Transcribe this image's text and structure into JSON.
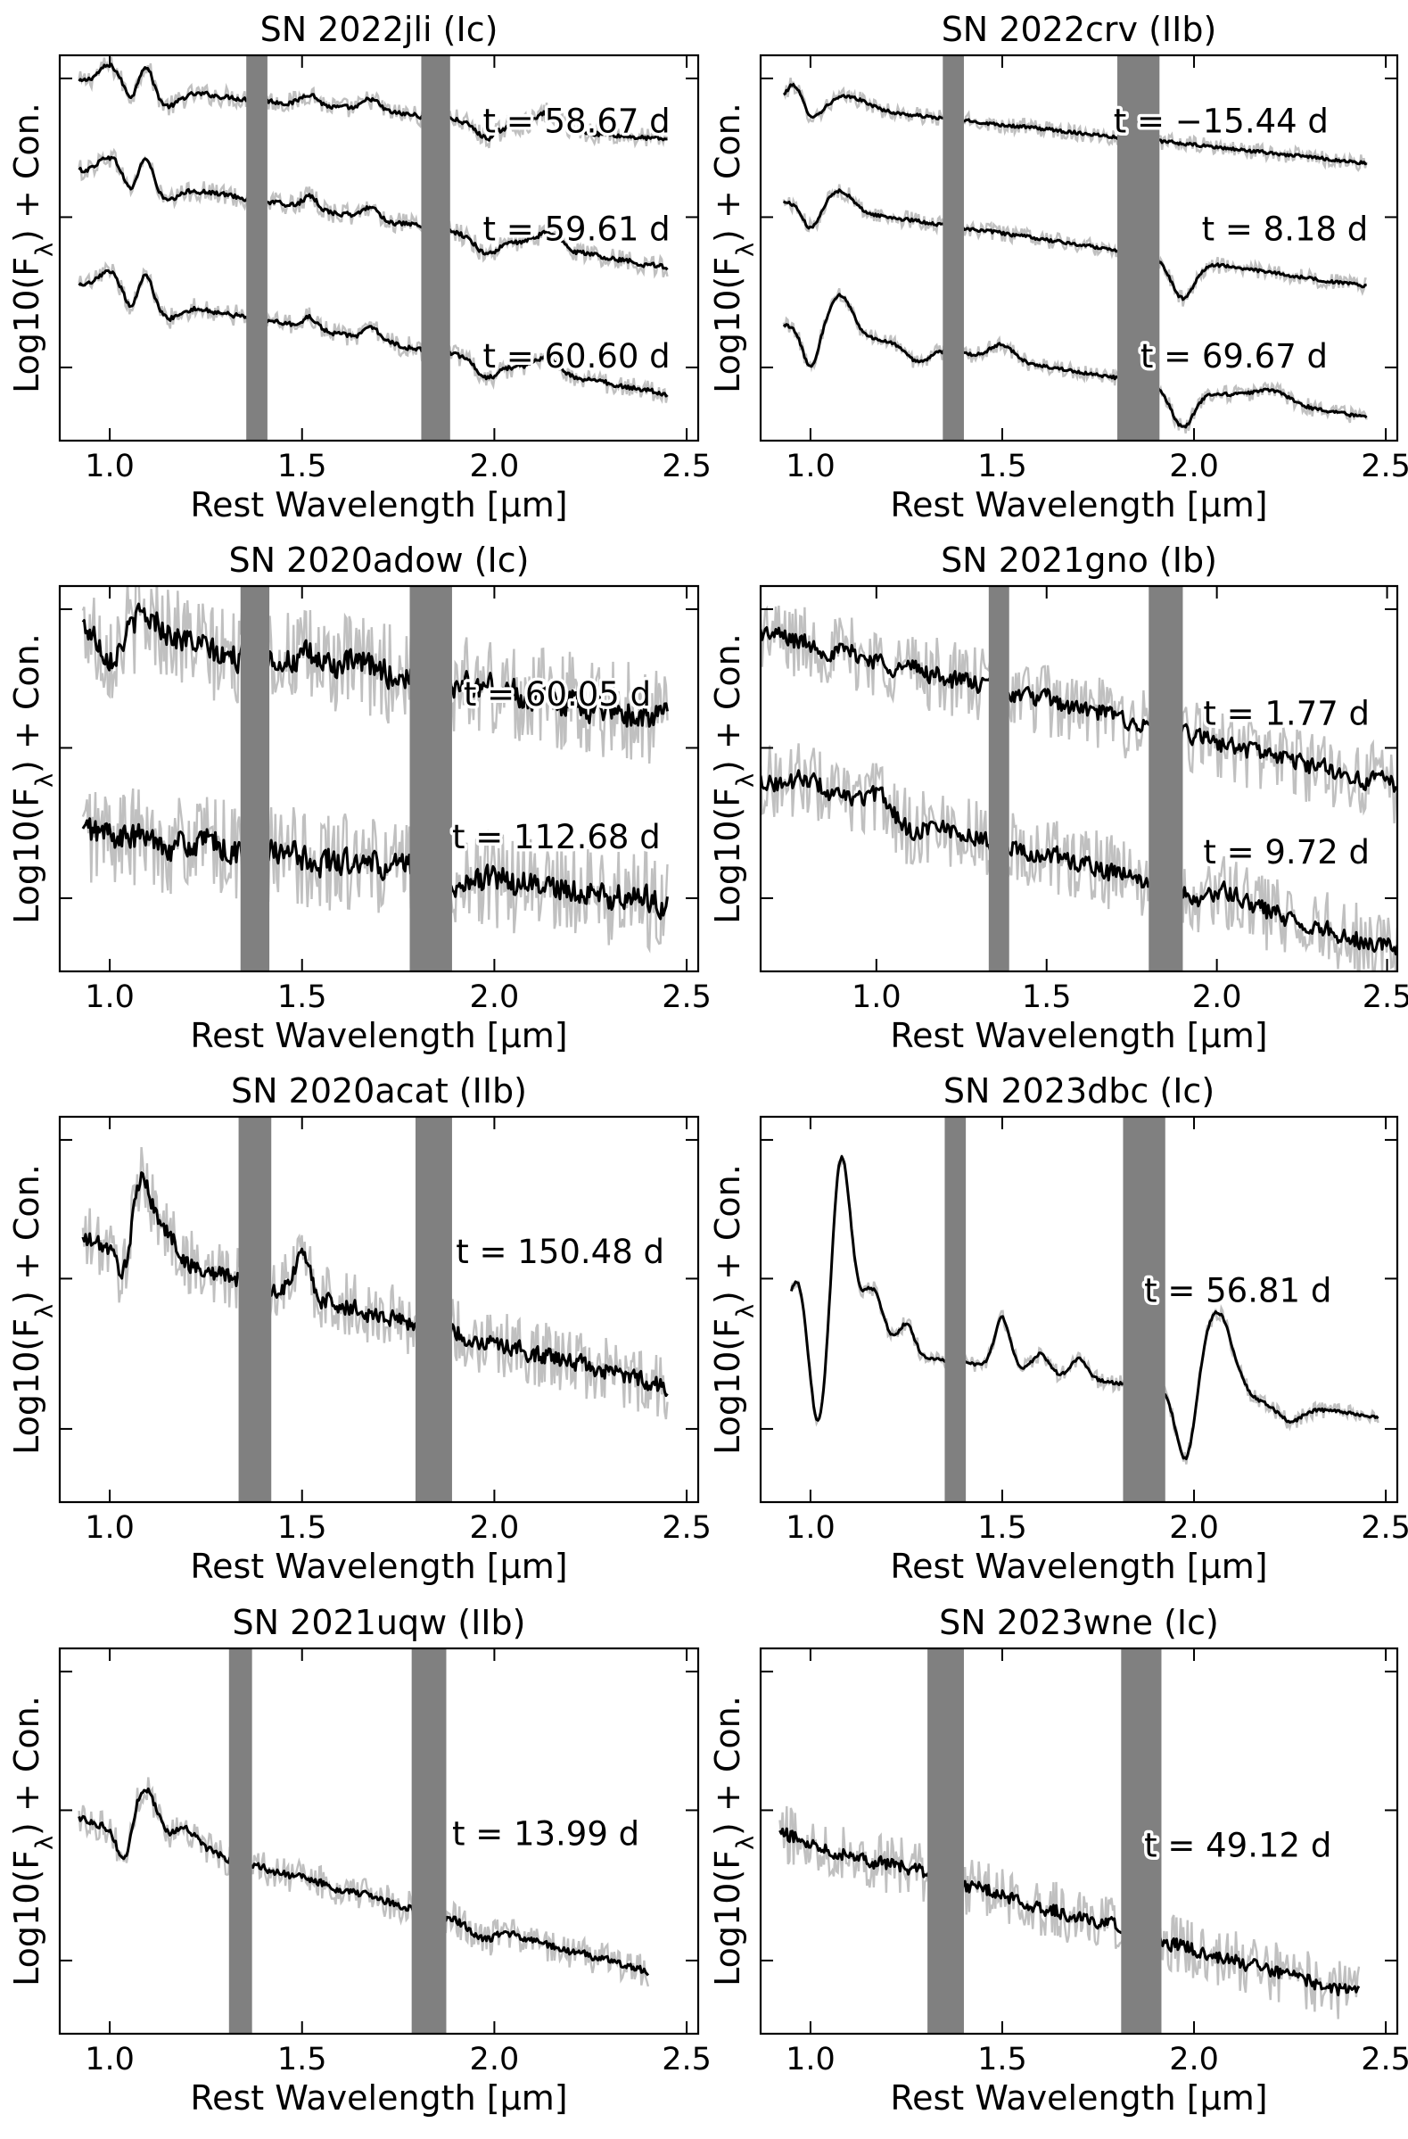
{
  "figure": {
    "style": {
      "raw_color": "#c0c0c0",
      "smooth_color": "#000000",
      "band_color": "#808080"
    },
    "ylabel_text": "Log10(F",
    "ylabel_sub": "λ",
    "ylabel_rest": ") + Con.",
    "panels": [
      {
        "title": "SN 2022jli (Ic)",
        "xlabel": "Rest Wavelength [µm]",
        "xlim": [
          0.87,
          2.53
        ],
        "xticks": [
          "1.0",
          "1.5",
          "2.0",
          "2.5"
        ],
        "xtick_values": [
          1.0,
          1.5,
          2.0,
          2.5
        ],
        "telluric_bands": [
          [
            1.355,
            1.41
          ],
          [
            1.81,
            1.885
          ]
        ],
        "noise": 0.025,
        "wiggle": 0.3,
        "series": [
          {
            "epoch": "t = 58.67 d",
            "wl_range": [
              0.92,
              2.45
            ],
            "start": 0.93,
            "end": 0.78,
            "features": [
              [
                1.0,
                0.05,
                0.03
              ],
              [
                1.06,
                -0.05,
                0.02
              ],
              [
                1.09,
                0.08,
                0.02
              ],
              [
                1.15,
                -0.04,
                0.03
              ],
              [
                1.52,
                0.03,
                0.02
              ],
              [
                1.68,
                0.03,
                0.02
              ],
              [
                1.98,
                -0.04,
                0.03
              ],
              [
                2.14,
                0.04,
                0.03
              ]
            ]
          },
          {
            "epoch": "t = 59.61 d",
            "wl_range": [
              0.92,
              2.45
            ],
            "start": 0.7,
            "end": 0.45,
            "features": [
              [
                1.0,
                0.05,
                0.03
              ],
              [
                1.06,
                -0.05,
                0.02
              ],
              [
                1.09,
                0.08,
                0.02
              ],
              [
                1.15,
                -0.04,
                0.03
              ],
              [
                1.52,
                0.03,
                0.02
              ],
              [
                1.68,
                0.03,
                0.02
              ],
              [
                1.98,
                -0.04,
                0.03
              ],
              [
                2.14,
                0.04,
                0.03
              ]
            ]
          },
          {
            "epoch": "t = 60.60 d",
            "wl_range": [
              0.92,
              2.45
            ],
            "start": 0.4,
            "end": 0.12,
            "features": [
              [
                1.0,
                0.05,
                0.03
              ],
              [
                1.06,
                -0.05,
                0.02
              ],
              [
                1.09,
                0.08,
                0.02
              ],
              [
                1.15,
                -0.04,
                0.03
              ],
              [
                1.52,
                0.03,
                0.02
              ],
              [
                1.68,
                0.03,
                0.02
              ],
              [
                1.98,
                -0.04,
                0.03
              ],
              [
                2.14,
                0.04,
                0.03
              ]
            ]
          }
        ],
        "epoch_labels": [
          {
            "text": "t = 58.67 d",
            "x": 1.97,
            "y": 0.8
          },
          {
            "text": "t = 59.61 d",
            "x": 1.97,
            "y": 0.52
          },
          {
            "text": "t = 60.60 d",
            "x": 1.97,
            "y": 0.19
          }
        ]
      },
      {
        "title": "SN 2022crv (IIb)",
        "xlabel": "Rest Wavelength [µm]",
        "xlim": [
          0.87,
          2.53
        ],
        "xticks": [
          "1.0",
          "1.5",
          "2.0",
          "2.5"
        ],
        "xtick_values": [
          1.0,
          1.5,
          2.0,
          2.5
        ],
        "telluric_bands": [
          [
            1.345,
            1.4
          ],
          [
            1.8,
            1.91
          ]
        ],
        "noise": 0.02,
        "wiggle": 0.15,
        "series": [
          {
            "epoch": "t = −15.44 d",
            "wl_range": [
              0.93,
              2.45
            ],
            "start": 0.88,
            "end": 0.72,
            "features": [
              [
                0.96,
                0.06,
                0.02
              ],
              [
                1.0,
                -0.04,
                0.03
              ],
              [
                1.1,
                0.03,
                0.05
              ]
            ]
          },
          {
            "epoch": "t = 8.18 d",
            "wl_range": [
              0.93,
              2.45
            ],
            "start": 0.62,
            "end": 0.4,
            "features": [
              [
                1.0,
                -0.06,
                0.02
              ],
              [
                1.08,
                0.05,
                0.03
              ],
              [
                1.97,
                -0.1,
                0.03
              ]
            ]
          },
          {
            "epoch": "t = 69.67 d",
            "wl_range": [
              0.93,
              2.45
            ],
            "start": 0.3,
            "end": 0.06,
            "features": [
              [
                1.0,
                -0.1,
                0.02
              ],
              [
                1.08,
                0.1,
                0.03
              ],
              [
                1.28,
                -0.04,
                0.03
              ],
              [
                1.5,
                0.04,
                0.03
              ],
              [
                1.97,
                -0.1,
                0.03
              ],
              [
                2.2,
                0.03,
                0.05
              ]
            ]
          }
        ],
        "epoch_labels": [
          {
            "text": "t = −15.44 d",
            "x": 1.79,
            "y": 0.8
          },
          {
            "text": "t = 8.18 d",
            "x": 2.02,
            "y": 0.52
          },
          {
            "text": "t = 69.67 d",
            "x": 1.86,
            "y": 0.19
          }
        ]
      },
      {
        "title": "SN 2020adow (Ic)",
        "xlabel": "Rest Wavelength [µm]",
        "xlim": [
          0.87,
          2.53
        ],
        "xticks": [
          "1.0",
          "1.5",
          "2.0",
          "2.5"
        ],
        "xtick_values": [
          1.0,
          1.5,
          2.0,
          2.5
        ],
        "telluric_bands": [
          [
            1.34,
            1.415
          ],
          [
            1.78,
            1.89
          ]
        ],
        "noise": 0.12,
        "wiggle": 0.5,
        "series": [
          {
            "epoch": "t = 60.05 d",
            "wl_range": [
              0.93,
              2.45
            ],
            "start": 0.9,
            "end": 0.66,
            "features": [
              [
                1.0,
                -0.06,
                0.03
              ],
              [
                1.1,
                0.04,
                0.05
              ],
              [
                1.3,
                -0.03,
                0.05
              ]
            ]
          },
          {
            "epoch": "t = 112.68 d",
            "wl_range": [
              0.93,
              2.45
            ],
            "start": 0.36,
            "end": 0.18,
            "features": []
          }
        ],
        "epoch_labels": [
          {
            "text": "t = 60.05 d",
            "x": 1.92,
            "y": 0.69
          },
          {
            "text": "t = 112.68 d",
            "x": 1.89,
            "y": 0.32
          }
        ]
      },
      {
        "title": "SN 2021gno (Ib)",
        "xlabel": "Rest Wavelength [µm]",
        "xlim": [
          0.66,
          2.53
        ],
        "xticks": [
          "1.0",
          "1.5",
          "2.0",
          "2.5"
        ],
        "xtick_values": [
          1.0,
          1.5,
          2.0,
          2.5
        ],
        "telluric_bands": [
          [
            1.33,
            1.39
          ],
          [
            1.8,
            1.9
          ]
        ],
        "noise": 0.09,
        "wiggle": 0.35,
        "series": [
          {
            "epoch": "t = 1.77 d",
            "wl_range": [
              0.66,
              2.53
            ],
            "start": 0.88,
            "end": 0.48,
            "features": []
          },
          {
            "epoch": "t = 9.72 d",
            "wl_range": [
              0.66,
              2.53
            ],
            "start": 0.5,
            "end": 0.06,
            "features": [
              [
                0.8,
                0.03,
                0.04
              ],
              [
                1.0,
                0.03,
                0.04
              ],
              [
                1.1,
                -0.03,
                0.03
              ],
              [
                2.05,
                0.03,
                0.04
              ]
            ]
          }
        ],
        "epoch_labels": [
          {
            "text": "t = 1.77 d",
            "x": 1.96,
            "y": 0.64
          },
          {
            "text": "t = 9.72 d",
            "x": 1.96,
            "y": 0.28
          }
        ]
      },
      {
        "title": "SN 2020acat (IIb)",
        "xlabel": "Rest Wavelength [µm]",
        "xlim": [
          0.87,
          2.53
        ],
        "xticks": [
          "1.0",
          "1.5",
          "2.0",
          "2.5"
        ],
        "xtick_values": [
          1.0,
          1.5,
          2.0,
          2.5
        ],
        "telluric_bands": [
          [
            1.335,
            1.42
          ],
          [
            1.795,
            1.89
          ]
        ],
        "noise": 0.08,
        "wiggle": 0.45,
        "series": [
          {
            "epoch": "t = 150.48 d",
            "wl_range": [
              0.93,
              2.45
            ],
            "start": 0.68,
            "end": 0.3,
            "features": [
              [
                1.04,
                -0.12,
                0.02
              ],
              [
                1.08,
                0.2,
                0.03
              ],
              [
                1.15,
                0.06,
                0.03
              ],
              [
                1.5,
                0.1,
                0.02
              ]
            ]
          }
        ],
        "epoch_labels": [
          {
            "text": "t = 150.48 d",
            "x": 1.9,
            "y": 0.62
          }
        ]
      },
      {
        "title": "SN 2023dbc (Ic)",
        "xlabel": "Rest Wavelength [µm]",
        "xlim": [
          0.87,
          2.53
        ],
        "xticks": [
          "1.0",
          "1.5",
          "2.0",
          "2.5"
        ],
        "xtick_values": [
          1.0,
          1.5,
          2.0,
          2.5
        ],
        "telluric_bands": [
          [
            1.35,
            1.405
          ],
          [
            1.815,
            1.925
          ]
        ],
        "noise": 0.02,
        "wiggle": 0.15,
        "series": [
          {
            "epoch": "t = 56.81 d",
            "wl_range": [
              0.95,
              2.48
            ],
            "start": 0.42,
            "end": 0.22,
            "features": [
              [
                0.97,
                0.18,
                0.025
              ],
              [
                1.02,
                -0.25,
                0.025
              ],
              [
                1.08,
                0.5,
                0.025
              ],
              [
                1.16,
                0.16,
                0.03
              ],
              [
                1.25,
                0.08,
                0.02
              ],
              [
                1.5,
                0.13,
                0.02
              ],
              [
                1.6,
                0.05,
                0.02
              ],
              [
                1.7,
                0.05,
                0.02
              ],
              [
                1.98,
                -0.2,
                0.025
              ],
              [
                2.06,
                0.22,
                0.04
              ],
              [
                2.25,
                -0.04,
                0.03
              ]
            ]
          }
        ],
        "epoch_labels": [
          {
            "text": "t = 56.81 d",
            "x": 1.87,
            "y": 0.52
          }
        ]
      },
      {
        "title": "SN 2021uqw (IIb)",
        "xlabel": "Rest Wavelength [µm]",
        "xlim": [
          0.87,
          2.53
        ],
        "xticks": [
          "1.0",
          "1.5",
          "2.0",
          "2.5"
        ],
        "xtick_values": [
          1.0,
          1.5,
          2.0,
          2.5
        ],
        "telluric_bands": [
          [
            1.31,
            1.37
          ],
          [
            1.785,
            1.875
          ]
        ],
        "noise": 0.04,
        "wiggle": 0.25,
        "series": [
          {
            "epoch": "t = 13.99 d",
            "wl_range": [
              0.92,
              2.4
            ],
            "start": 0.56,
            "end": 0.16,
            "features": [
              [
                1.04,
                -0.1,
                0.02
              ],
              [
                1.09,
                0.13,
                0.03
              ],
              [
                1.2,
                0.05,
                0.03
              ],
              [
                1.97,
                -0.03,
                0.03
              ]
            ]
          }
        ],
        "epoch_labels": [
          {
            "text": "t = 13.99 d",
            "x": 1.89,
            "y": 0.49
          }
        ]
      },
      {
        "title": "SN 2023wne (Ic)",
        "xlabel": "Rest Wavelength [µm]",
        "xlim": [
          0.87,
          2.53
        ],
        "xticks": [
          "1.0",
          "1.5",
          "2.0",
          "2.5"
        ],
        "xtick_values": [
          1.0,
          1.5,
          2.0,
          2.5
        ],
        "telluric_bands": [
          [
            1.305,
            1.4
          ],
          [
            1.81,
            1.915
          ]
        ],
        "noise": 0.07,
        "wiggle": 0.3,
        "series": [
          {
            "epoch": "t = 49.12 d",
            "wl_range": [
              0.92,
              2.43
            ],
            "start": 0.52,
            "end": 0.1,
            "features": []
          }
        ],
        "epoch_labels": [
          {
            "text": "t = 49.12 d",
            "x": 1.87,
            "y": 0.46
          }
        ]
      }
    ]
  },
  "chart_data": [
    {
      "type": "line",
      "title": "SN 2022jli (Ic)",
      "xlabel": "Rest Wavelength [µm]",
      "ylabel": "Log10(Fλ) + Con.",
      "xlim": [
        0.87,
        2.53
      ],
      "series": [
        {
          "name": "t = 58.67 d"
        },
        {
          "name": "t = 59.61 d"
        },
        {
          "name": "t = 60.60 d"
        }
      ]
    },
    {
      "type": "line",
      "title": "SN 2022crv (IIb)",
      "xlabel": "Rest Wavelength [µm]",
      "ylabel": "Log10(Fλ) + Con.",
      "xlim": [
        0.87,
        2.53
      ],
      "series": [
        {
          "name": "t = −15.44 d"
        },
        {
          "name": "t = 8.18 d"
        },
        {
          "name": "t = 69.67 d"
        }
      ]
    },
    {
      "type": "line",
      "title": "SN 2020adow (Ic)",
      "xlabel": "Rest Wavelength [µm]",
      "ylabel": "Log10(Fλ) + Con.",
      "xlim": [
        0.87,
        2.53
      ],
      "series": [
        {
          "name": "t = 60.05 d"
        },
        {
          "name": "t = 112.68 d"
        }
      ]
    },
    {
      "type": "line",
      "title": "SN 2021gno (Ib)",
      "xlabel": "Rest Wavelength [µm]",
      "ylabel": "Log10(Fλ) + Con.",
      "xlim": [
        0.66,
        2.53
      ],
      "series": [
        {
          "name": "t = 1.77 d"
        },
        {
          "name": "t = 9.72 d"
        }
      ]
    },
    {
      "type": "line",
      "title": "SN 2020acat (IIb)",
      "xlabel": "Rest Wavelength [µm]",
      "ylabel": "Log10(Fλ) + Con.",
      "xlim": [
        0.87,
        2.53
      ],
      "series": [
        {
          "name": "t = 150.48 d"
        }
      ]
    },
    {
      "type": "line",
      "title": "SN 2023dbc (Ic)",
      "xlabel": "Rest Wavelength [µm]",
      "ylabel": "Log10(Fλ) + Con.",
      "xlim": [
        0.87,
        2.53
      ],
      "series": [
        {
          "name": "t = 56.81 d"
        }
      ]
    },
    {
      "type": "line",
      "title": "SN 2021uqw (IIb)",
      "xlabel": "Rest Wavelength [µm]",
      "ylabel": "Log10(Fλ) + Con.",
      "xlim": [
        0.87,
        2.53
      ],
      "series": [
        {
          "name": "t = 13.99 d"
        }
      ]
    },
    {
      "type": "line",
      "title": "SN 2023wne (Ic)",
      "xlabel": "Rest Wavelength [µm]",
      "ylabel": "Log10(Fλ) + Con.",
      "xlim": [
        0.87,
        2.53
      ],
      "series": [
        {
          "name": "t = 49.12 d"
        }
      ]
    }
  ]
}
